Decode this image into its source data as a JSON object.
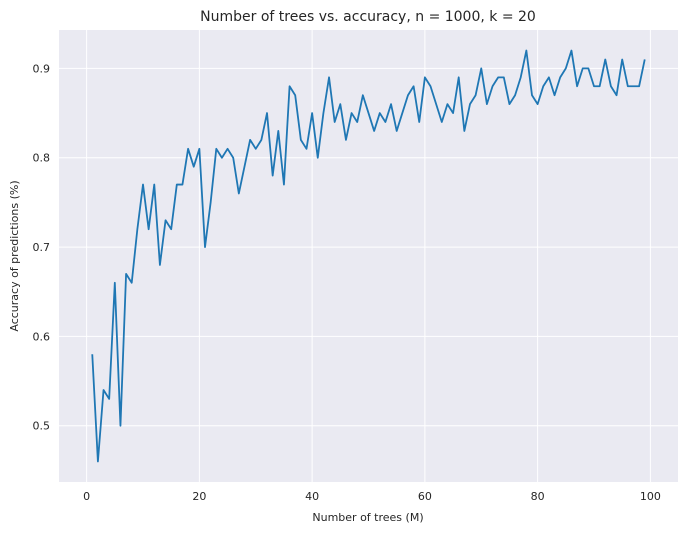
{
  "chart_data": {
    "type": "line",
    "title": "Number of trees vs. accuracy, n = 1000, k = 20",
    "xlabel": "Number of trees (M)",
    "ylabel": "Accuracy of predictions (%)",
    "xlim": [
      -4.9,
      104.9
    ],
    "ylim": [
      0.437,
      0.943
    ],
    "xticks": [
      0,
      20,
      40,
      60,
      80,
      100
    ],
    "yticks": [
      0.5,
      0.6,
      0.7,
      0.8,
      0.9
    ],
    "xtick_labels": [
      "0",
      "20",
      "40",
      "60",
      "80",
      "100"
    ],
    "ytick_labels": [
      "0.5",
      "0.6",
      "0.7",
      "0.8",
      "0.9"
    ],
    "grid": true,
    "background": "#eaeaf2",
    "series": [
      {
        "color": "#1f77b4",
        "x": [
          1,
          2,
          3,
          4,
          5,
          6,
          7,
          8,
          9,
          10,
          11,
          12,
          13,
          14,
          15,
          16,
          17,
          18,
          19,
          20,
          21,
          22,
          23,
          24,
          25,
          26,
          27,
          28,
          29,
          30,
          31,
          32,
          33,
          34,
          35,
          36,
          37,
          38,
          39,
          40,
          41,
          42,
          43,
          44,
          45,
          46,
          47,
          48,
          49,
          50,
          51,
          52,
          53,
          54,
          55,
          56,
          57,
          58,
          59,
          60,
          61,
          62,
          63,
          64,
          65,
          66,
          67,
          68,
          69,
          70,
          71,
          72,
          73,
          74,
          75,
          76,
          77,
          78,
          79,
          80,
          81,
          82,
          83,
          84,
          85,
          86,
          87,
          88,
          89,
          90,
          91,
          92,
          93,
          94,
          95,
          96,
          97,
          98,
          99
        ],
        "y": [
          0.58,
          0.46,
          0.54,
          0.53,
          0.66,
          0.5,
          0.67,
          0.66,
          0.72,
          0.77,
          0.72,
          0.77,
          0.68,
          0.73,
          0.72,
          0.77,
          0.77,
          0.81,
          0.79,
          0.81,
          0.7,
          0.75,
          0.81,
          0.8,
          0.81,
          0.8,
          0.76,
          0.79,
          0.82,
          0.81,
          0.82,
          0.85,
          0.78,
          0.83,
          0.77,
          0.88,
          0.87,
          0.82,
          0.81,
          0.85,
          0.8,
          0.85,
          0.89,
          0.84,
          0.86,
          0.82,
          0.85,
          0.84,
          0.87,
          0.85,
          0.83,
          0.85,
          0.84,
          0.86,
          0.83,
          0.85,
          0.87,
          0.88,
          0.84,
          0.89,
          0.88,
          0.86,
          0.84,
          0.86,
          0.85,
          0.89,
          0.83,
          0.86,
          0.87,
          0.9,
          0.86,
          0.88,
          0.89,
          0.89,
          0.86,
          0.87,
          0.89,
          0.92,
          0.87,
          0.86,
          0.88,
          0.89,
          0.87,
          0.89,
          0.9,
          0.92,
          0.88,
          0.9,
          0.9,
          0.88,
          0.88,
          0.91,
          0.88,
          0.87,
          0.91,
          0.88,
          0.88,
          0.88,
          0.91
        ]
      }
    ]
  }
}
